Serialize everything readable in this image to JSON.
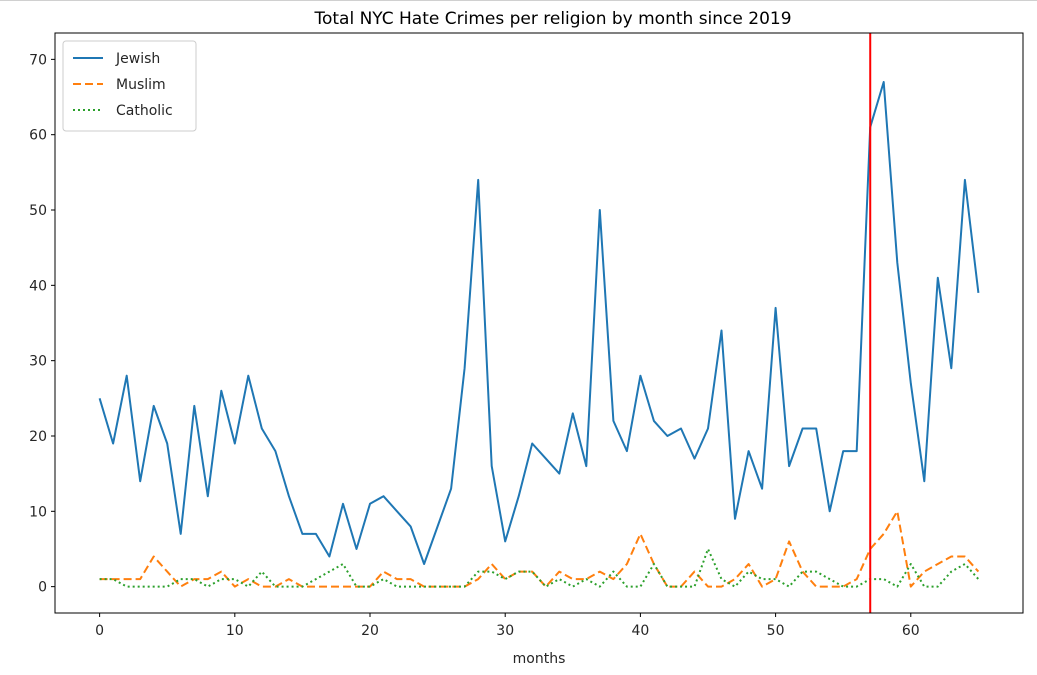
{
  "chart_data": {
    "type": "line",
    "title": "Total NYC Hate Crimes per religion by month since 2019",
    "xlabel": "months",
    "ylabel": "",
    "xlim": [
      -3.3,
      68.3
    ],
    "ylim": [
      -3.5,
      73.5
    ],
    "xticks": [
      0,
      10,
      20,
      30,
      40,
      50,
      60
    ],
    "yticks": [
      0,
      10,
      20,
      30,
      40,
      50,
      60,
      70
    ],
    "grid": false,
    "legend_position": "upper left",
    "vline": {
      "x": 57,
      "color": "#ff0000"
    },
    "x": [
      0,
      1,
      2,
      3,
      4,
      5,
      6,
      7,
      8,
      9,
      10,
      11,
      12,
      13,
      14,
      15,
      16,
      17,
      18,
      19,
      20,
      21,
      22,
      23,
      24,
      25,
      26,
      27,
      28,
      29,
      30,
      31,
      32,
      33,
      34,
      35,
      36,
      37,
      38,
      39,
      40,
      41,
      42,
      43,
      44,
      45,
      46,
      47,
      48,
      49,
      50,
      51,
      52,
      53,
      54,
      55,
      56,
      57,
      58,
      59,
      60,
      61,
      62,
      63,
      64,
      65
    ],
    "series": [
      {
        "name": "Jewish",
        "color": "#1f77b4",
        "style": "solid",
        "values": [
          25,
          19,
          28,
          14,
          24,
          19,
          7,
          24,
          12,
          26,
          19,
          28,
          21,
          18,
          12,
          7,
          7,
          4,
          11,
          5,
          11,
          12,
          10,
          8,
          3,
          8,
          13,
          29,
          54,
          16,
          6,
          12,
          19,
          17,
          15,
          23,
          16,
          50,
          22,
          18,
          28,
          22,
          20,
          21,
          17,
          21,
          34,
          9,
          18,
          13,
          37,
          16,
          21,
          21,
          10,
          18,
          18,
          61,
          67,
          43,
          27,
          14,
          41,
          29,
          54,
          39
        ]
      },
      {
        "name": "Muslim",
        "color": "#ff7f0e",
        "style": "dashed",
        "values": [
          1,
          1,
          1,
          1,
          4,
          2,
          0,
          1,
          1,
          2,
          0,
          1,
          0,
          0,
          1,
          0,
          0,
          0,
          0,
          0,
          0,
          2,
          1,
          1,
          0,
          0,
          0,
          0,
          1,
          3,
          1,
          2,
          2,
          0,
          2,
          1,
          1,
          2,
          1,
          3,
          7,
          3,
          0,
          0,
          2,
          0,
          0,
          1,
          3,
          0,
          1,
          6,
          2,
          0,
          0,
          0,
          1,
          5,
          7,
          10,
          0,
          2,
          3,
          4,
          4,
          2
        ]
      },
      {
        "name": "Catholic",
        "color": "#2ca02c",
        "style": "dotted",
        "values": [
          1,
          1,
          0,
          0,
          0,
          0,
          1,
          1,
          0,
          1,
          1,
          0,
          2,
          0,
          0,
          0,
          1,
          2,
          3,
          0,
          0,
          1,
          0,
          0,
          0,
          0,
          0,
          0,
          2,
          2,
          1,
          2,
          2,
          0,
          1,
          0,
          1,
          0,
          2,
          0,
          0,
          3,
          0,
          0,
          0,
          5,
          1,
          0,
          2,
          1,
          1,
          0,
          2,
          2,
          1,
          0,
          0,
          1,
          1,
          0,
          3,
          0,
          0,
          2,
          3,
          1
        ]
      }
    ]
  }
}
